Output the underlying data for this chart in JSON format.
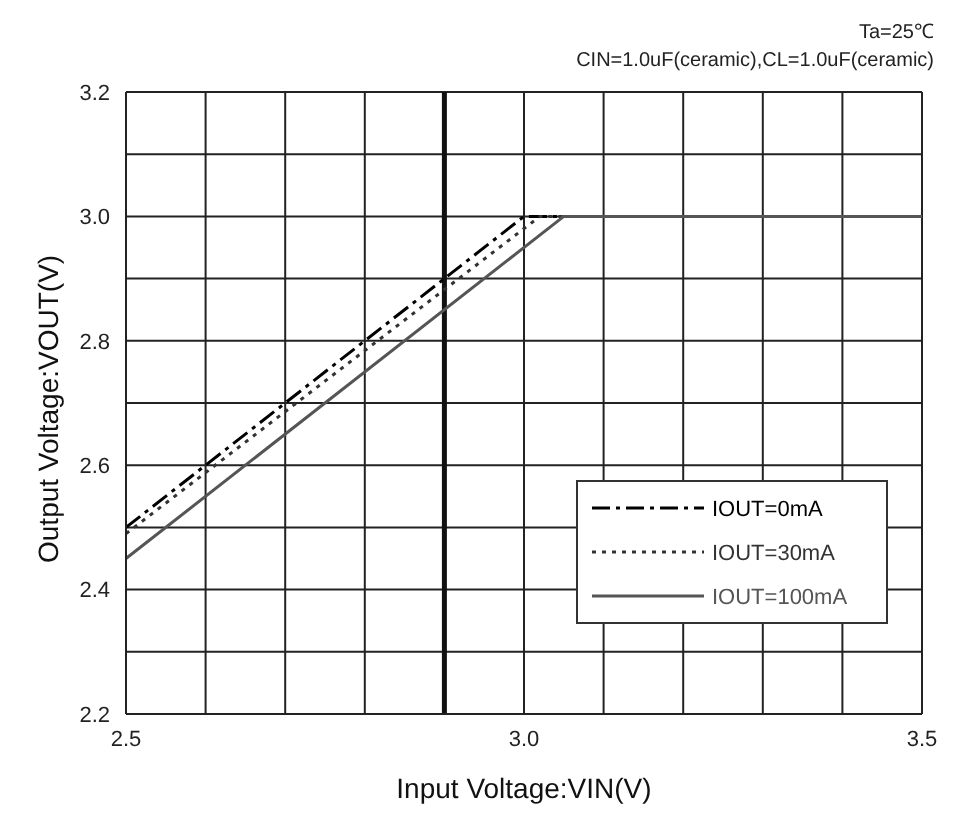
{
  "chart_data": {
    "type": "line",
    "xlabel": "Input Voltage:VIN(V)",
    "ylabel": "Output Voltage:VOUT(V)",
    "annotations": [
      "Ta=25℃",
      "CIN=1.0uF(ceramic),CL=1.0uF(ceramic)"
    ],
    "series": [
      {
        "name": "IOUT=0mA",
        "color": "#000000",
        "line_style": "dashed",
        "x": [
          2.5,
          3.0,
          3.5
        ],
        "values": [
          2.5,
          3.0,
          3.0
        ]
      },
      {
        "name": "IOUT=30mA",
        "color": "#333333",
        "line_style": "dotted",
        "x": [
          2.5,
          3.02,
          3.5
        ],
        "values": [
          2.49,
          3.0,
          3.0
        ]
      },
      {
        "name": "IOUT=100mA",
        "color": "#555555",
        "line_style": "solid",
        "x": [
          2.5,
          3.05,
          3.5
        ],
        "values": [
          2.45,
          3.0,
          3.0
        ]
      }
    ],
    "xlim": [
      2.5,
      3.5
    ],
    "xticks": [
      2.5,
      {
        "value": 2.6,
        "label": null
      },
      {
        "value": 2.7,
        "label": null
      },
      {
        "value": 2.8,
        "label": null
      },
      {
        "value": 2.9,
        "label": null
      },
      "3.0",
      {
        "value": 3.1,
        "label": null
      },
      {
        "value": 3.2,
        "label": null
      },
      {
        "value": 3.3,
        "label": null
      },
      {
        "value": 3.4,
        "label": null
      },
      3.5
    ],
    "ylim": [
      2.2,
      3.2
    ],
    "yticks": [
      2.2,
      {
        "value": 2.3,
        "label": null
      },
      2.4,
      {
        "value": 2.5,
        "label": null
      },
      2.6,
      {
        "value": 2.7,
        "label": null
      },
      2.8,
      {
        "value": 2.9,
        "label": null
      },
      {
        "value": 3.0,
        "label": "3.0"
      },
      {
        "value": 3.1,
        "label": null
      },
      3.2
    ],
    "ref_lines": [
      {
        "axis": "x",
        "value": 2.9
      }
    ],
    "grid": true,
    "legend": "bottom right",
    "marker": "none"
  }
}
